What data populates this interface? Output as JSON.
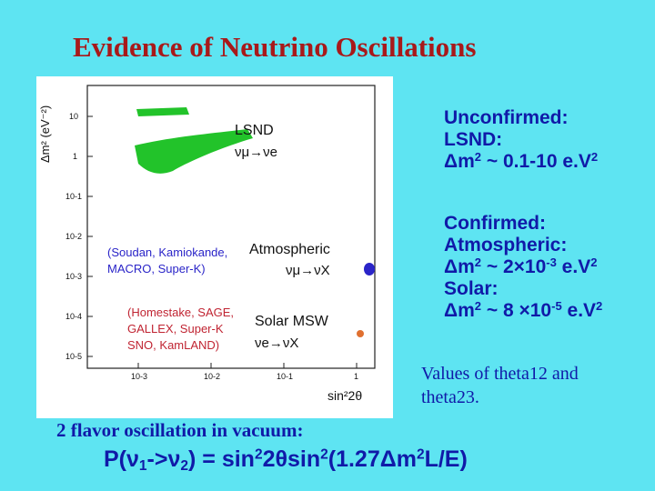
{
  "slide": {
    "title": "Evidence of Neutrino Oscillations"
  },
  "plot": {
    "y_axis_label": "Δm² (eV⁻²)",
    "x_axis_label": "sin²2θ",
    "y_ticks": [
      "10",
      "1",
      "10-1",
      "10-2",
      "10-3",
      "10-4",
      "10-5"
    ],
    "x_ticks": [
      "10-3",
      "10-2",
      "10-1",
      "1"
    ],
    "lsnd_label": "LSND",
    "lsnd_channel": "νμ→νe",
    "atm_experiments_1": "(Soudan, Kamiokande,",
    "atm_experiments_2": "MACRO, Super-K)",
    "atm_label": "Atmospheric",
    "atm_channel": "νμ→νX",
    "solar_experiments_1": "(Homestake, SAGE,",
    "solar_experiments_2": "GALLEX, Super-K",
    "solar_experiments_3": "SNO, KamLAND)",
    "solar_label": "Solar MSW",
    "solar_channel": "νe→νX",
    "colors": {
      "lsnd_region": "#22C32A",
      "atm_label": "#2A24C8",
      "solar_label": "#C02432",
      "solar_point": "#E07030"
    }
  },
  "unconfirmed": {
    "heading": "Unconfirmed:",
    "line2": "LSND:",
    "dm": "Δm",
    "sq": "2",
    "value": " ~ 0.1-10 e.V",
    "unit_sq": "2"
  },
  "confirmed": {
    "heading": "Confirmed:",
    "atm_label": "Atmospheric:",
    "atm_dm": "Δm",
    "atm_sq": "2",
    "atm_value": " ~ 2×10",
    "atm_exp": "-3",
    "atm_unit": " e.V",
    "atm_unit_sq": "2",
    "solar_label": "Solar:",
    "solar_dm": "Δm",
    "solar_sq": "2",
    "solar_value": " ~ 8 ×10",
    "solar_exp": "-5",
    "solar_unit": " e.V",
    "solar_unit_sq": "2"
  },
  "notes": {
    "values": "Values of theta12 and theta23.",
    "flavor": "2 flavor oscillation in vacuum:"
  },
  "formula": {
    "p": "P(ν",
    "s1": "1",
    "arrow": "->ν",
    "s2": "2",
    "close": ")",
    "eq": " = sin",
    "e1": "2",
    "mid": "2θsin",
    "e2": "2",
    "paren": "(1.27Δm",
    "e3": "2",
    "end": "L/E)"
  }
}
